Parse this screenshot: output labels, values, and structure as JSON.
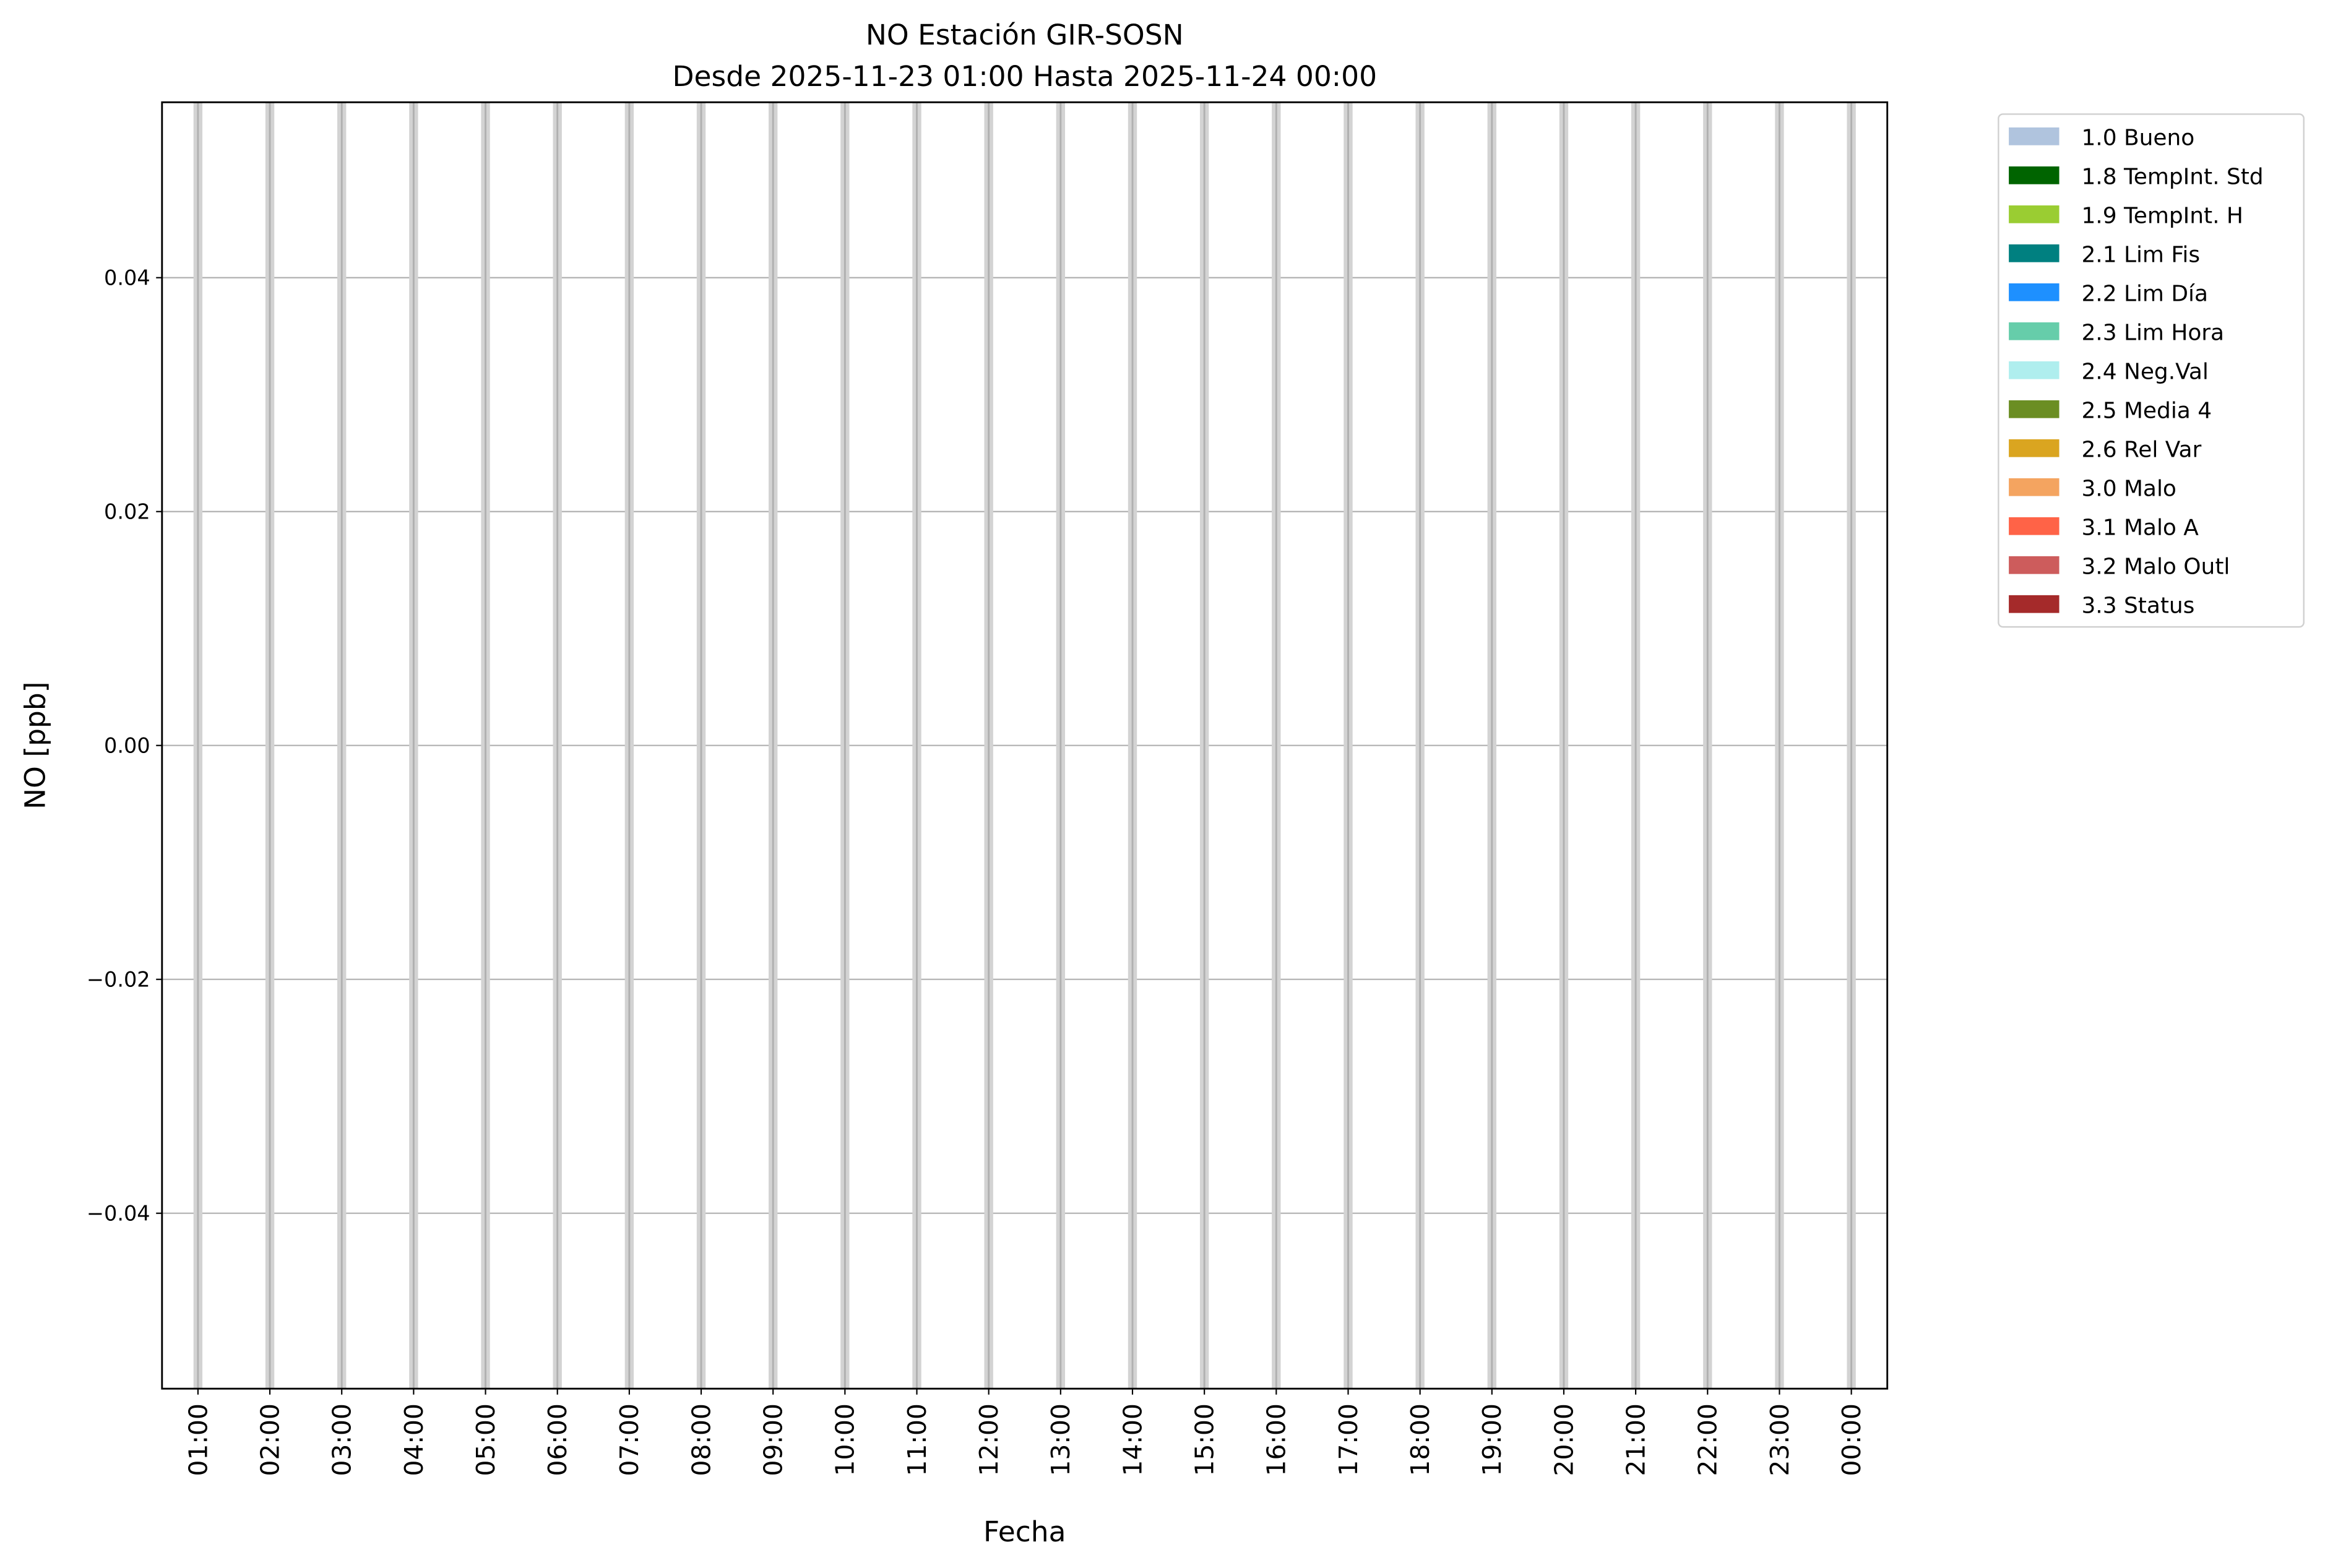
{
  "chart_data": {
    "type": "bar",
    "title": "NO Estación GIR-SOSN",
    "subtitle": "Desde 2025-11-23 01:00 Hasta 2025-11-24 00:00",
    "xlabel": "Fecha",
    "ylabel": "NO [ppb]",
    "categories": [
      "01:00",
      "02:00",
      "03:00",
      "04:00",
      "05:00",
      "06:00",
      "07:00",
      "08:00",
      "09:00",
      "10:00",
      "11:00",
      "12:00",
      "13:00",
      "14:00",
      "15:00",
      "16:00",
      "17:00",
      "18:00",
      "19:00",
      "20:00",
      "21:00",
      "22:00",
      "23:00",
      "00:00"
    ],
    "values": [
      null,
      null,
      null,
      null,
      null,
      null,
      null,
      null,
      null,
      null,
      null,
      null,
      null,
      null,
      null,
      null,
      null,
      null,
      null,
      null,
      null,
      null,
      null,
      null
    ],
    "ylim": [
      -0.055,
      0.055
    ],
    "yticks": [
      -0.04,
      -0.02,
      0.0,
      0.02,
      0.04
    ],
    "ytick_labels": [
      "−0.04",
      "−0.02",
      "0.00",
      "0.02",
      "0.04"
    ],
    "grid": true,
    "band_color": "#d3d3d3",
    "grid_color": "#b0b0b0",
    "legend_position": "outside-right-top",
    "legend": [
      {
        "label": "1.0 Bueno",
        "color": "#b0c4de"
      },
      {
        "label": "1.8 TempInt. Std",
        "color": "#006400"
      },
      {
        "label": "1.9 TempInt. H",
        "color": "#9acd32"
      },
      {
        "label": "2.1 Lim Fis",
        "color": "#008080"
      },
      {
        "label": "2.2 Lim Día",
        "color": "#1e90ff"
      },
      {
        "label": "2.3 Lim Hora",
        "color": "#66cdaa"
      },
      {
        "label": "2.4 Neg.Val",
        "color": "#afeeee"
      },
      {
        "label": "2.5 Media 4",
        "color": "#6b8e23"
      },
      {
        "label": "2.6 Rel Var",
        "color": "#daa520"
      },
      {
        "label": "3.0 Malo",
        "color": "#f4a460"
      },
      {
        "label": "3.1 Malo A",
        "color": "#ff6347"
      },
      {
        "label": "3.2 Malo Outl",
        "color": "#cd5c5c"
      },
      {
        "label": "3.3 Status",
        "color": "#a52a2a"
      }
    ]
  }
}
